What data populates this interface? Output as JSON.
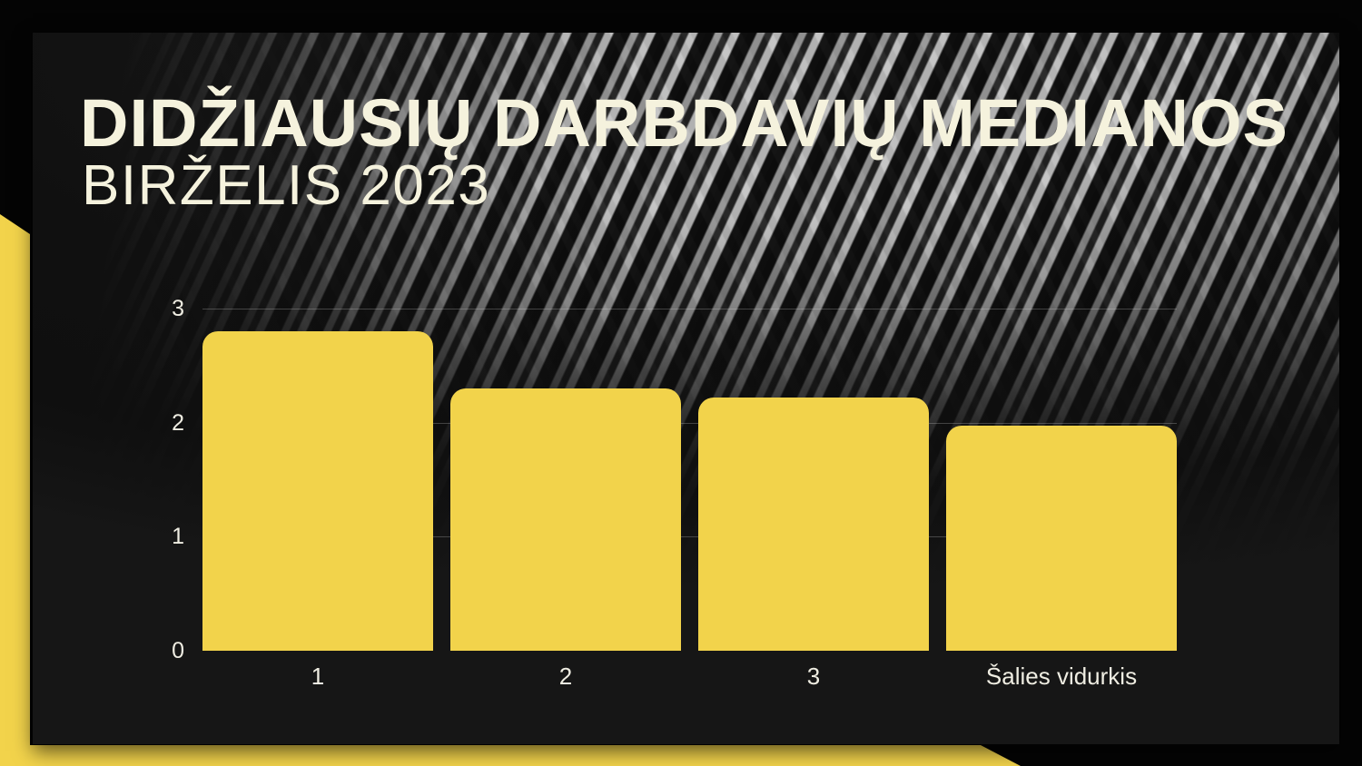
{
  "slide": {
    "title": "DIDŽIAUSIŲ DARBDAVIŲ MEDIANOS",
    "subtitle": "BIRŽELIS 2023"
  },
  "colors": {
    "accent_yellow": "#F2D34B",
    "cream_text": "#F5F2DD",
    "panel_background": "#161616",
    "outer_background": "#040404",
    "tick_text": "#EFEDE2",
    "gridline": "rgba(255,255,255,0.22)"
  },
  "chart_data": {
    "type": "bar",
    "categories": [
      "1",
      "2",
      "3",
      "Šalies vidurkis"
    ],
    "values": [
      2.8,
      2.3,
      2.22,
      1.97
    ],
    "title": "",
    "xlabel": "",
    "ylabel": "",
    "ylim": [
      0,
      3
    ],
    "yticks": [
      0,
      1,
      2,
      3
    ],
    "grid": true,
    "legend": false,
    "bar_color": "#F2D34B"
  }
}
